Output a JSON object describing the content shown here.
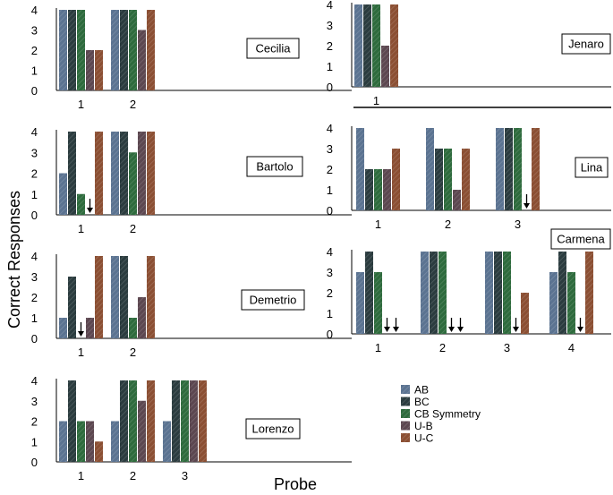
{
  "chart_data": {
    "type": "bar",
    "ylabel": "Correct Responses",
    "xlabel": "Probe",
    "ylim": [
      0,
      4
    ],
    "yticks": [
      "0",
      "1",
      "2",
      "3",
      "4"
    ],
    "legend": [
      {
        "name": "AB",
        "color": "#5b7391"
      },
      {
        "name": "BC",
        "color": "#2b3c3f"
      },
      {
        "name": "CB Symmetry",
        "color": "#2e6b3d"
      },
      {
        "name": "U-B",
        "color": "#5c4750"
      },
      {
        "name": "U-C",
        "color": "#8b4f33"
      }
    ],
    "panels": [
      {
        "participant": "Cecilia",
        "probes": [
          {
            "label": "1",
            "values": [
              4,
              4,
              4,
              2,
              2
            ],
            "arrows": 0
          },
          {
            "label": "2",
            "values": [
              4,
              4,
              4,
              3,
              4
            ],
            "arrows": 0
          }
        ]
      },
      {
        "participant": "Bartolo",
        "probes": [
          {
            "label": "1",
            "values": [
              2,
              4,
              1,
              0,
              4
            ],
            "arrows": 1
          },
          {
            "label": "2",
            "values": [
              4,
              4,
              3,
              4,
              4
            ],
            "arrows": 0
          }
        ]
      },
      {
        "participant": "Demetrio",
        "probes": [
          {
            "label": "1",
            "values": [
              1,
              3,
              0,
              1,
              4
            ],
            "arrows": 1
          },
          {
            "label": "2",
            "values": [
              4,
              4,
              1,
              2,
              4
            ],
            "arrows": 0
          }
        ]
      },
      {
        "participant": "Lorenzo",
        "probes": [
          {
            "label": "1",
            "values": [
              2,
              4,
              2,
              2,
              1
            ],
            "arrows": 0
          },
          {
            "label": "2",
            "values": [
              2,
              4,
              4,
              3,
              4
            ],
            "arrows": 0
          },
          {
            "label": "3",
            "values": [
              2,
              4,
              4,
              4,
              4
            ],
            "arrows": 0
          }
        ]
      },
      {
        "participant": "Jenaro",
        "probes": [
          {
            "label": "1",
            "values": [
              4,
              4,
              4,
              2,
              4
            ],
            "arrows": 0
          }
        ]
      },
      {
        "participant": "Lina",
        "probes": [
          {
            "label": "1",
            "values": [
              4,
              2,
              2,
              2,
              3
            ],
            "arrows": 0
          },
          {
            "label": "2",
            "values": [
              4,
              3,
              3,
              1,
              3
            ],
            "arrows": 0
          },
          {
            "label": "3",
            "values": [
              4,
              4,
              4,
              0,
              4
            ],
            "arrows": 1
          }
        ]
      },
      {
        "participant": "Carmena",
        "probes": [
          {
            "label": "1",
            "values": [
              3,
              4,
              3,
              0,
              0
            ],
            "arrows": 2
          },
          {
            "label": "2",
            "values": [
              4,
              4,
              4,
              0,
              0
            ],
            "arrows": 2
          },
          {
            "label": "3",
            "values": [
              4,
              4,
              4,
              0,
              2
            ],
            "arrows": 1
          },
          {
            "label": "4",
            "values": [
              3,
              4,
              3,
              0,
              4
            ],
            "arrows": 1
          }
        ]
      }
    ]
  }
}
